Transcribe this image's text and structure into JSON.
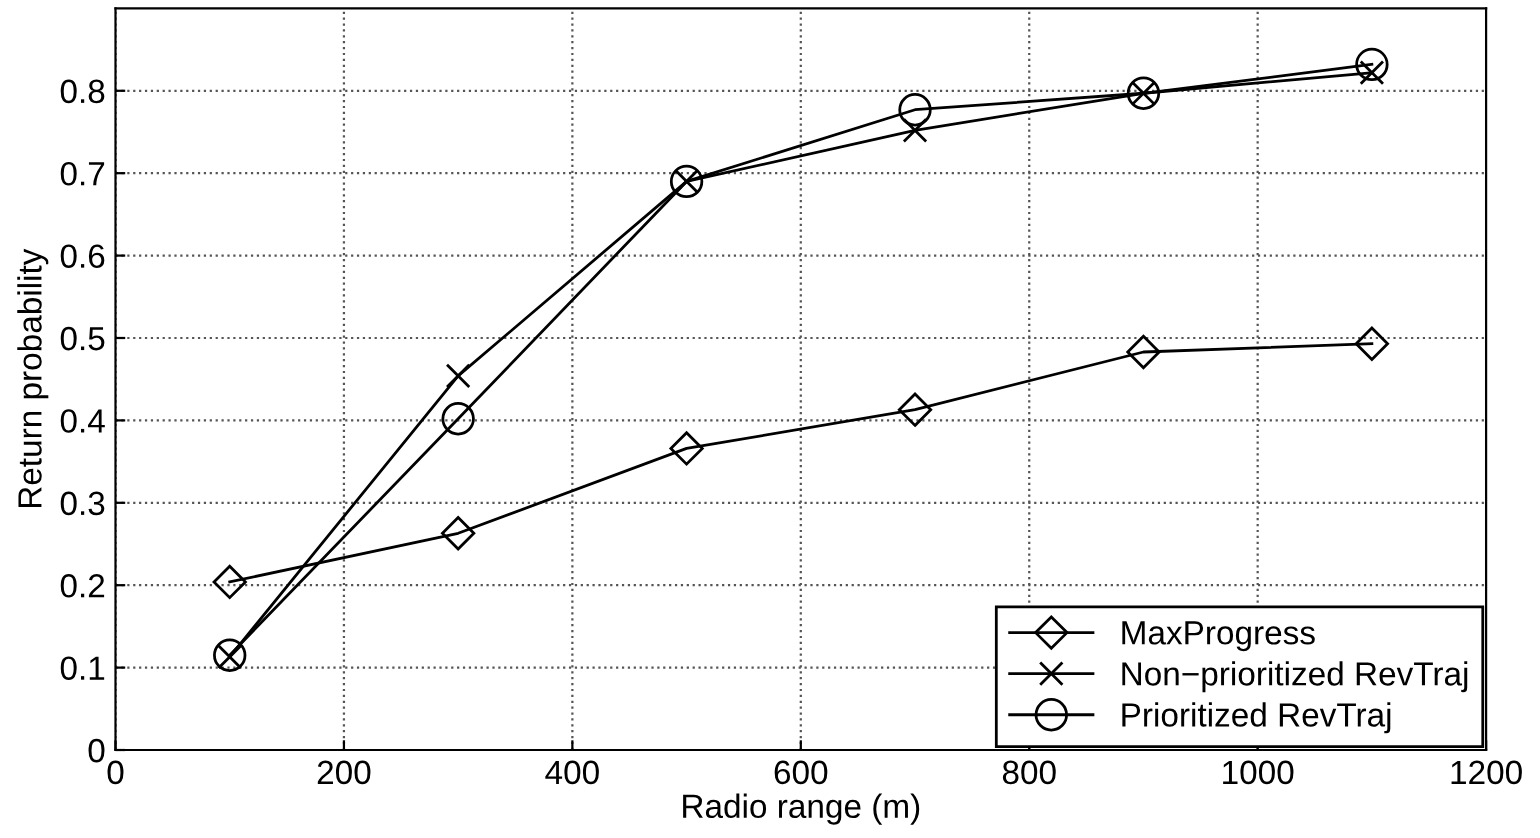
{
  "chart_data": {
    "type": "line",
    "xlabel": "Radio range (m)",
    "ylabel": "Return probability",
    "x": [
      100,
      300,
      500,
      700,
      900,
      1100
    ],
    "series": [
      {
        "name": "MaxProgress",
        "color": "#000000",
        "marker": "diamond",
        "values": [
          0.204,
          0.263,
          0.366,
          0.413,
          0.483,
          0.493
        ]
      },
      {
        "name": "Non−prioritized RevTraj",
        "color": "#000000",
        "marker": "cross",
        "values": [
          0.113,
          0.454,
          0.69,
          0.752,
          0.797,
          0.822
        ]
      },
      {
        "name": "Prioritized RevTraj",
        "color": "#000000",
        "marker": "circle",
        "values": [
          0.115,
          0.402,
          0.69,
          0.777,
          0.797,
          0.832
        ]
      }
    ],
    "xlim": [
      0,
      1200
    ],
    "xticks": [
      0,
      200,
      400,
      600,
      800,
      1000,
      1200
    ],
    "ylim": [
      0,
      0.9
    ],
    "yticks": [
      0,
      0.1,
      0.2,
      0.3,
      0.4,
      0.5,
      0.6,
      0.7,
      0.8
    ],
    "grid": true,
    "legend": "bottom right",
    "line_style": "solid"
  }
}
